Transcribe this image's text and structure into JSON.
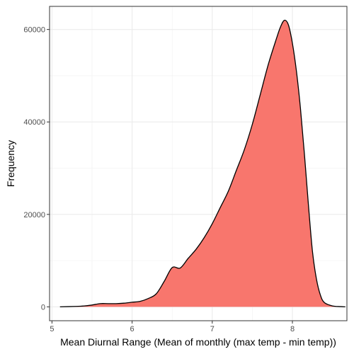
{
  "chart_data": {
    "type": "area",
    "title": "",
    "xlabel": "Mean Diurnal Range (Mean of monthly (max temp - min temp))",
    "ylabel": "Frequency",
    "xlim": [
      4.97,
      8.68
    ],
    "ylim": [
      -3000,
      65000
    ],
    "x_ticks": [
      5,
      6,
      7,
      8
    ],
    "y_ticks": [
      0,
      20000,
      40000,
      60000
    ],
    "x_tick_labels": [
      "5",
      "6",
      "7",
      "8"
    ],
    "y_tick_labels": [
      "0",
      "20000",
      "40000",
      "60000"
    ],
    "grid": true,
    "legend": "none",
    "fill_color": "#F8766D",
    "line_color": "#000000",
    "series": [
      {
        "x": [
          5.1,
          5.3,
          5.4,
          5.5,
          5.6,
          5.7,
          5.8,
          5.9,
          6.0,
          6.1,
          6.2,
          6.3,
          6.4,
          6.5,
          6.6,
          6.7,
          6.8,
          6.9,
          7.0,
          7.1,
          7.2,
          7.3,
          7.4,
          7.5,
          7.6,
          7.7,
          7.8,
          7.85,
          7.9,
          7.95,
          8.0,
          8.05,
          8.1,
          8.15,
          8.2,
          8.25,
          8.3,
          8.35,
          8.4,
          8.5,
          8.6,
          8.66
        ],
        "values": [
          0,
          100,
          200,
          400,
          700,
          700,
          700,
          800,
          1000,
          1200,
          1800,
          2800,
          5500,
          8500,
          8400,
          10500,
          12500,
          15000,
          18000,
          21500,
          25000,
          29500,
          34000,
          39500,
          46000,
          52500,
          58000,
          60500,
          62000,
          61000,
          57000,
          51000,
          43000,
          33000,
          22000,
          12000,
          6000,
          2500,
          900,
          200,
          50,
          0
        ]
      }
    ]
  }
}
